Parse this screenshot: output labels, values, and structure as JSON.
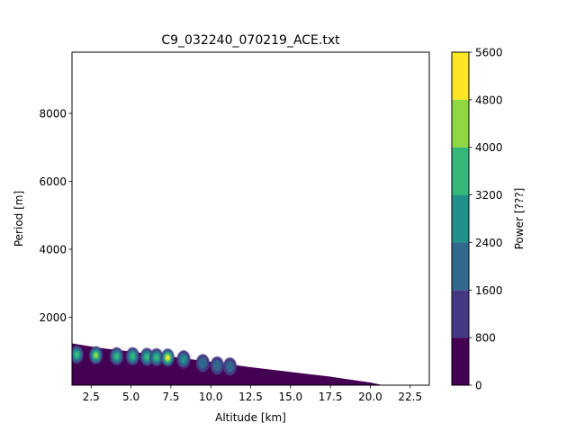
{
  "chart_data": {
    "type": "heatmap",
    "title": "C9_032240_070219_ACE.txt",
    "xlabel": "Altitude [km]",
    "ylabel": "Period [m]",
    "xlim": [
      1.3,
      23.7
    ],
    "ylim": [
      0,
      9800
    ],
    "xticks": [
      2.5,
      5.0,
      7.5,
      10.0,
      12.5,
      15.0,
      17.5,
      20.0,
      22.5
    ],
    "xtick_labels": [
      "2.5",
      "5.0",
      "7.5",
      "10.0",
      "12.5",
      "15.0",
      "17.5",
      "20.0",
      "22.5"
    ],
    "yticks": [
      2000,
      4000,
      6000,
      8000
    ],
    "ytick_labels": [
      "2000",
      "4000",
      "6000",
      "8000"
    ],
    "grid": false,
    "colorbar": {
      "label": "Power [???]",
      "levels": [
        0,
        800,
        1600,
        2400,
        3200,
        4000,
        4800,
        5600
      ],
      "level_labels": [
        "0",
        "800",
        "1600",
        "2400",
        "3200",
        "4000",
        "4800",
        "5600"
      ],
      "colors": [
        "#440154",
        "#443a83",
        "#31688e",
        "#21918c",
        "#35b779",
        "#90d743",
        "#fde725"
      ]
    },
    "boundary": {
      "x": [
        1.3,
        3.0,
        5.0,
        7.5,
        10.0,
        12.5,
        15.0,
        17.5,
        20.0,
        20.8
      ],
      "y": [
        1230,
        1100,
        990,
        840,
        690,
        530,
        390,
        250,
        80,
        0
      ]
    },
    "hotspots": [
      {
        "x": 1.6,
        "y": 900,
        "power": 3600
      },
      {
        "x": 2.8,
        "y": 880,
        "power": 4200
      },
      {
        "x": 4.1,
        "y": 850,
        "power": 3400
      },
      {
        "x": 5.1,
        "y": 850,
        "power": 3800
      },
      {
        "x": 6.0,
        "y": 830,
        "power": 3300
      },
      {
        "x": 6.6,
        "y": 820,
        "power": 3200
      },
      {
        "x": 7.3,
        "y": 810,
        "power": 5200
      },
      {
        "x": 8.3,
        "y": 760,
        "power": 2400
      },
      {
        "x": 9.5,
        "y": 650,
        "power": 2200
      },
      {
        "x": 10.4,
        "y": 580,
        "power": 1600
      },
      {
        "x": 11.2,
        "y": 550,
        "power": 1600
      }
    ]
  }
}
